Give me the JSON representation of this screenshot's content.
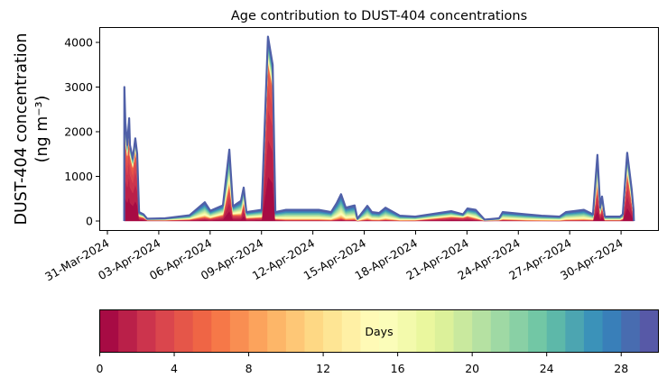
{
  "chart_data": {
    "type": "area",
    "stacked": true,
    "title": "Age contribution to DUST-404 concentrations",
    "ylabel_line1": "DUST-404 concentration",
    "ylabel_line2": "(ng m⁻³)",
    "xlabel": "",
    "ylim": [
      -150,
      4400
    ],
    "y_ticks": [
      "0",
      "1000",
      "2000",
      "3000",
      "4000"
    ],
    "y_tick_values": [
      0,
      1000,
      2000,
      3000,
      4000
    ],
    "x_unit": "days since 31-Mar-2024",
    "xlim": [
      -0.45,
      32.2
    ],
    "x_ticks": [
      "31-Mar-2024",
      "03-Apr-2024",
      "06-Apr-2024",
      "09-Apr-2024",
      "12-Apr-2024",
      "15-Apr-2024",
      "18-Apr-2024",
      "21-Apr-2024",
      "24-Apr-2024",
      "27-Apr-2024",
      "30-Apr-2024"
    ],
    "x_tick_values": [
      0,
      3,
      6,
      9,
      12,
      15,
      18,
      21,
      24,
      27,
      30
    ],
    "series_note": "points: [day, total concentration, fraction from age < 6 days]",
    "points": [
      [
        0.98,
        0,
        0.9
      ],
      [
        0.99,
        3000,
        0.75
      ],
      [
        1.05,
        2200,
        0.8
      ],
      [
        1.16,
        1700,
        0.85
      ],
      [
        1.27,
        2300,
        0.85
      ],
      [
        1.32,
        1700,
        0.85
      ],
      [
        1.48,
        1400,
        0.85
      ],
      [
        1.63,
        1850,
        0.85
      ],
      [
        1.74,
        1500,
        0.85
      ],
      [
        1.85,
        200,
        0.5
      ],
      [
        2.11,
        150,
        0.5
      ],
      [
        2.32,
        50,
        0.4
      ],
      [
        3.37,
        60,
        0.3
      ],
      [
        4.8,
        130,
        0.25
      ],
      [
        5.69,
        420,
        0.2
      ],
      [
        6.01,
        230,
        0.25
      ],
      [
        6.75,
        350,
        0.35
      ],
      [
        7.12,
        1600,
        0.5
      ],
      [
        7.33,
        330,
        0.4
      ],
      [
        7.8,
        450,
        0.3
      ],
      [
        7.96,
        750,
        0.55
      ],
      [
        8.12,
        200,
        0.3
      ],
      [
        9.01,
        250,
        0.3
      ],
      [
        9.38,
        4130,
        0.85
      ],
      [
        9.65,
        3500,
        0.85
      ],
      [
        9.81,
        200,
        0.2
      ],
      [
        10.44,
        250,
        0.1
      ],
      [
        11.28,
        250,
        0.1
      ],
      [
        12.34,
        250,
        0.1
      ],
      [
        13.07,
        200,
        0.1
      ],
      [
        13.39,
        400,
        0.1
      ],
      [
        13.65,
        600,
        0.1
      ],
      [
        13.92,
        300,
        0.1
      ],
      [
        14.44,
        350,
        0.1
      ],
      [
        14.6,
        50,
        0.1
      ],
      [
        15.18,
        340,
        0.1
      ],
      [
        15.45,
        200,
        0.1
      ],
      [
        15.87,
        180,
        0.1
      ],
      [
        16.24,
        300,
        0.1
      ],
      [
        17.08,
        120,
        0.1
      ],
      [
        17.98,
        100,
        0.15
      ],
      [
        20.08,
        220,
        0.4
      ],
      [
        20.77,
        150,
        0.5
      ],
      [
        21.03,
        280,
        0.35
      ],
      [
        21.51,
        250,
        0.2
      ],
      [
        22.03,
        30,
        0.3
      ],
      [
        22.88,
        60,
        0.3
      ],
      [
        23.09,
        200,
        0.15
      ],
      [
        24.46,
        150,
        0.1
      ],
      [
        25.36,
        120,
        0.1
      ],
      [
        26.41,
        100,
        0.1
      ],
      [
        26.78,
        200,
        0.1
      ],
      [
        27.83,
        250,
        0.1
      ],
      [
        28.36,
        150,
        0.15
      ],
      [
        28.62,
        1480,
        0.55
      ],
      [
        28.78,
        300,
        0.5
      ],
      [
        28.89,
        550,
        0.6
      ],
      [
        29.05,
        100,
        0.2
      ],
      [
        29.94,
        100,
        0.2
      ],
      [
        30.1,
        150,
        0.3
      ],
      [
        30.36,
        1530,
        0.7
      ],
      [
        30.62,
        700,
        0.6
      ],
      [
        30.73,
        250,
        0.4
      ],
      [
        30.75,
        0,
        0.4
      ]
    ],
    "colorbar": {
      "label": "Days",
      "range": [
        0,
        30
      ],
      "bins": 30,
      "ticks": [
        "0",
        "4",
        "8",
        "12",
        "16",
        "20",
        "24",
        "28"
      ],
      "tick_values": [
        0,
        4,
        8,
        12,
        16,
        20,
        24,
        28
      ],
      "colormap_anchors": [
        "#9e0142",
        "#d53e4f",
        "#f46d43",
        "#fdae61",
        "#fee08b",
        "#ffffbf",
        "#e6f598",
        "#abdda4",
        "#66c2a5",
        "#3288bd",
        "#5e4fa2"
      ]
    }
  }
}
